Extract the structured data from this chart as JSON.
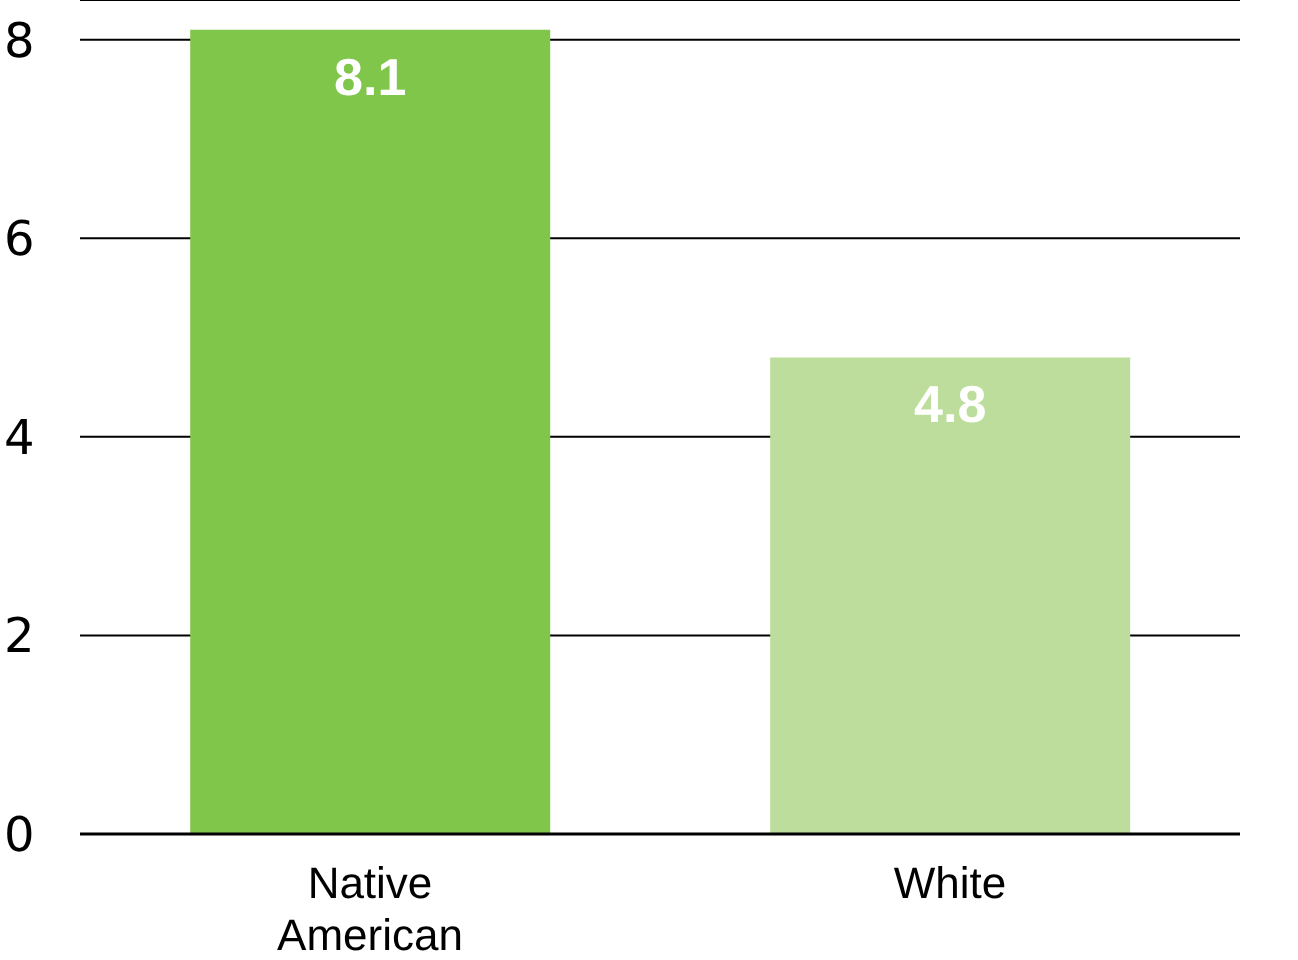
{
  "chart_data": {
    "type": "bar",
    "categories": [
      "Native American",
      "White"
    ],
    "values": [
      8.1,
      4.8
    ],
    "colors": [
      "#7fc64a",
      "#bcdd9b"
    ],
    "ylim": [
      0,
      8.4
    ],
    "yticks": [
      0,
      2,
      4,
      6,
      8
    ],
    "grid": "y",
    "data_labels": true,
    "legend": false
  }
}
